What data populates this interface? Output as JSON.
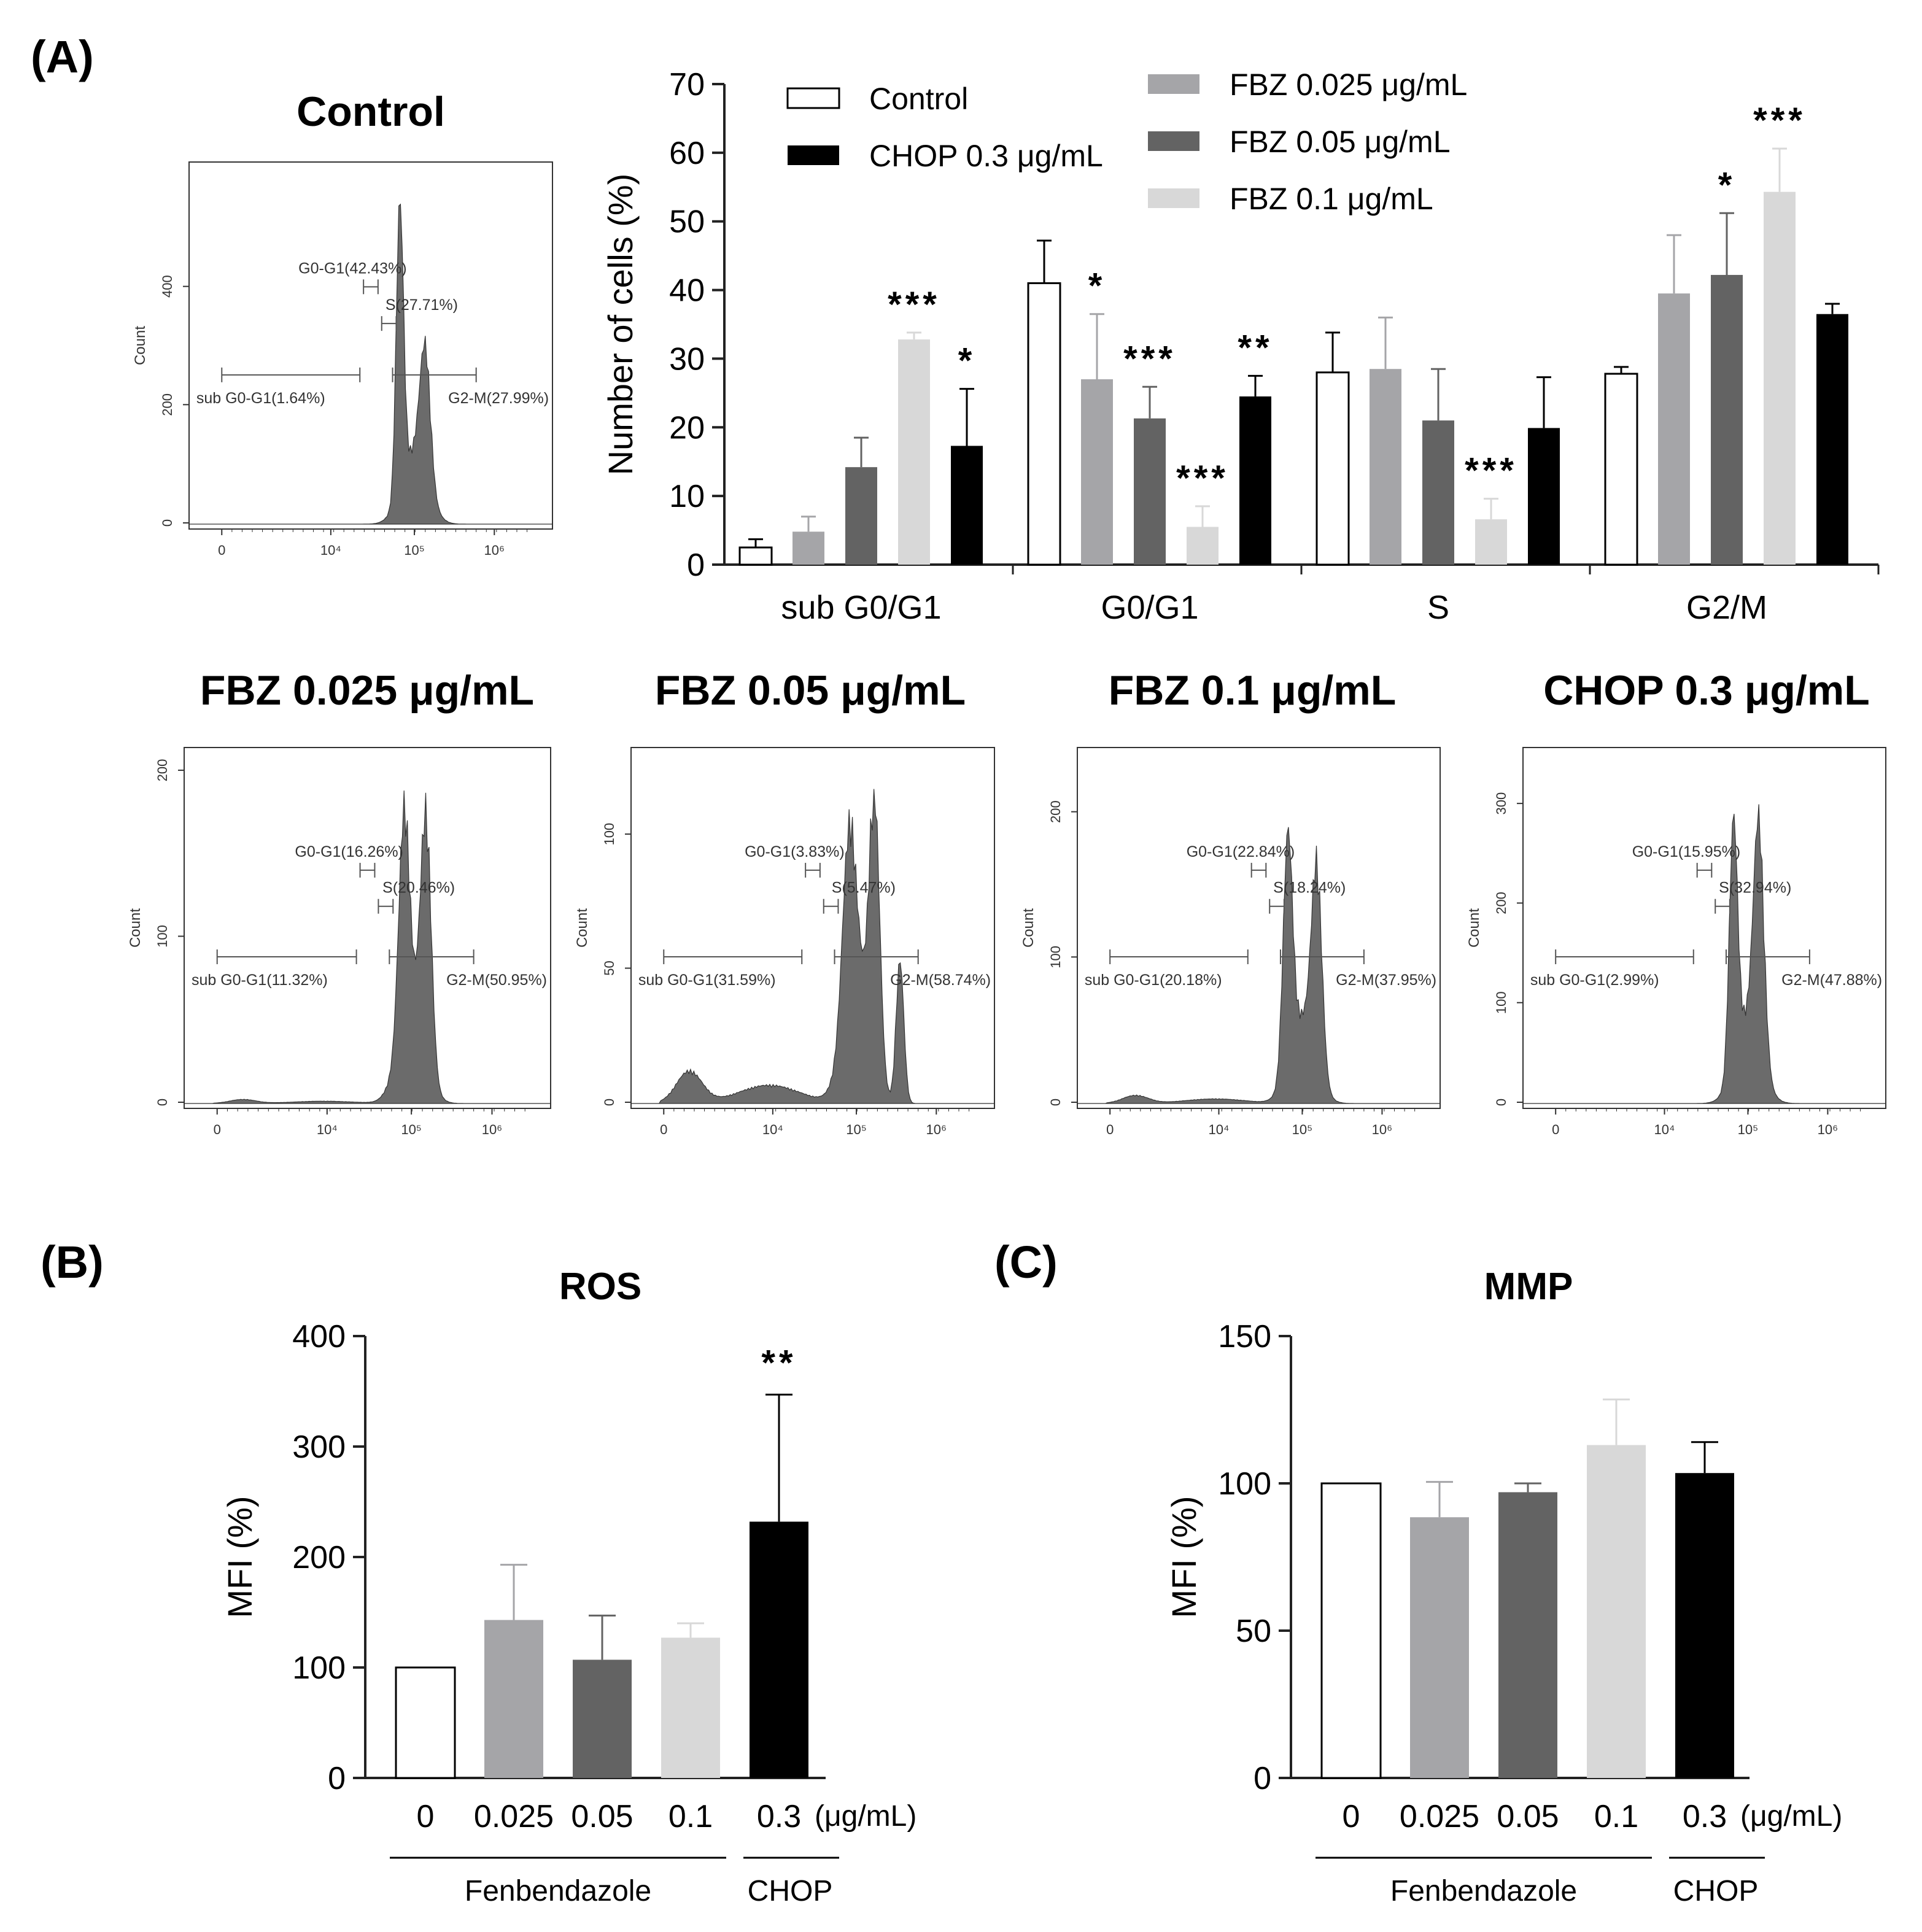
{
  "panel_labels": {
    "a": "(A)",
    "b": "(B)",
    "c": "(C)"
  },
  "colors": {
    "control": "#ffffff",
    "fbz025": "#a5a5a8",
    "fbz05": "#636363",
    "fbz1": "#d8d8d8",
    "chop": "#000000",
    "hist_fill": "#6b6b6b",
    "axis": "#222222",
    "gate": "#555555"
  },
  "chart_data": [
    {
      "id": "cell_cycle",
      "type": "bar",
      "title": "",
      "xlabel": "",
      "ylabel": "Number of cells (%)",
      "ylim": [
        0,
        70
      ],
      "yticks": [
        "0",
        "10",
        "20",
        "30",
        "40",
        "50",
        "60",
        "70"
      ],
      "categories": [
        "sub G0/G1",
        "G0/G1",
        "S",
        "G2/M"
      ],
      "series": [
        {
          "name": "Control",
          "color_key": "control",
          "values": [
            2.5,
            41,
            28,
            27.8
          ],
          "errors": [
            1.2,
            6.2,
            5.8,
            1.0
          ],
          "sig": [
            "",
            "",
            "",
            ""
          ]
        },
        {
          "name": "FBZ 0.025 μg/mL",
          "color_key": "fbz025",
          "values": [
            4.8,
            27,
            28.5,
            39.5
          ],
          "errors": [
            2.2,
            9.5,
            7.5,
            8.5
          ],
          "sig": [
            "",
            "*",
            "",
            ""
          ]
        },
        {
          "name": "FBZ 0.05 μg/mL",
          "color_key": "fbz05",
          "values": [
            14.2,
            21.3,
            21,
            42.2
          ],
          "errors": [
            4.3,
            4.6,
            7.5,
            9.0
          ],
          "sig": [
            "",
            "***",
            "",
            "*"
          ]
        },
        {
          "name": "FBZ 0.1 μg/mL",
          "color_key": "fbz1",
          "values": [
            32.8,
            5.5,
            6.6,
            54.3
          ],
          "errors": [
            1.0,
            3.0,
            3.0,
            6.3
          ],
          "sig": [
            "***",
            "***",
            "***",
            "***"
          ]
        },
        {
          "name": "CHOP 0.3 μg/mL",
          "color_key": "chop",
          "values": [
            17.3,
            24.5,
            19.9,
            36.5
          ],
          "errors": [
            8.3,
            3.0,
            7.4,
            1.5
          ],
          "sig": [
            "*",
            "**",
            "",
            ""
          ]
        }
      ],
      "legend": {
        "placement": "top",
        "entries": [
          "Control",
          "CHOP 0.3 μg/mL",
          "FBZ 0.025 μg/mL",
          "FBZ 0.05 μg/mL",
          "FBZ 0.1 μg/mL"
        ]
      }
    },
    {
      "id": "ros",
      "type": "bar",
      "title": "ROS",
      "ylabel": "MFI (%)",
      "ylim": [
        0,
        400
      ],
      "yticks": [
        "0",
        "100",
        "200",
        "300",
        "400"
      ],
      "categories": [
        "0",
        "0.025",
        "0.05",
        "0.1",
        "0.3"
      ],
      "unit_label": "(μg/mL)",
      "groups": [
        "Fenbendazole",
        "CHOP"
      ],
      "values": [
        100,
        143,
        107,
        127,
        232
      ],
      "errors": [
        0,
        50,
        40,
        13,
        115
      ],
      "color_keys": [
        "control",
        "fbz025",
        "fbz05",
        "fbz1",
        "chop"
      ],
      "sig": [
        "",
        "",
        "",
        "",
        "**"
      ]
    },
    {
      "id": "mmp",
      "type": "bar",
      "title": "MMP",
      "ylabel": "MFI (%)",
      "ylim": [
        0,
        150
      ],
      "yticks": [
        "0",
        "50",
        "100",
        "150"
      ],
      "categories": [
        "0",
        "0.025",
        "0.05",
        "0.1",
        "0.3"
      ],
      "unit_label": "(μg/mL)",
      "groups": [
        "Fenbendazole",
        "CHOP"
      ],
      "values": [
        100,
        88.5,
        97,
        113,
        103.5
      ],
      "errors": [
        0,
        12,
        3,
        15.5,
        10.5
      ],
      "color_keys": [
        "control",
        "fbz025",
        "fbz05",
        "fbz1",
        "chop"
      ],
      "sig": [
        "",
        "",
        "",
        "",
        ""
      ]
    }
  ],
  "histograms": [
    {
      "id": "control",
      "title": "Control",
      "yticks": [
        "0",
        "200",
        "400"
      ],
      "ymax": 600,
      "ylabel": "Count",
      "xticks": [
        "0",
        "10⁴",
        "10⁵",
        "10⁶"
      ],
      "gates": {
        "sub": "sub G0-G1(1.64%)",
        "g0g1": "G0-G1(42.43%)",
        "s": "S(27.71%)",
        "g2m": "G2-M(27.99%)"
      },
      "subpop": 0.0,
      "peaks": [
        [
          0.58,
          0.014,
          1.0
        ],
        [
          0.65,
          0.02,
          0.45
        ]
      ],
      "shoulder": 0.25
    },
    {
      "id": "fbz025",
      "title": "FBZ 0.025 μg/mL",
      "yticks": [
        "0",
        "100",
        "200"
      ],
      "ymax": 210,
      "ylabel": "Count",
      "xticks": [
        "0",
        "10⁴",
        "10⁵",
        "10⁶"
      ],
      "gates": {
        "sub": "sub G0-G1(11.32%)",
        "g0g1": "G0-G1(16.26%)",
        "s": "S(20.46%)",
        "g2m": "G2-M(50.95%)"
      },
      "subpop": 0.04,
      "peaks": [
        [
          0.6,
          0.02,
          0.75
        ],
        [
          0.66,
          0.02,
          0.85
        ]
      ],
      "shoulder": 0.35
    },
    {
      "id": "fbz05",
      "title": "FBZ 0.05 μg/mL",
      "yticks": [
        "0",
        "50",
        "100"
      ],
      "ymax": 130,
      "ylabel": "Count",
      "xticks": [
        "0",
        "10⁴",
        "10⁵",
        "10⁶"
      ],
      "gates": {
        "sub": "sub G0-G1(31.59%)",
        "g0g1": "G0-G1(3.83%)",
        "s": "S(5.47%)",
        "g2m": "G2-M(58.74%)"
      },
      "subpop": 0.32,
      "peaks": [
        [
          0.6,
          0.025,
          0.6
        ],
        [
          0.67,
          0.02,
          0.95
        ],
        [
          0.74,
          0.015,
          0.5
        ]
      ],
      "shoulder": 0.45
    },
    {
      "id": "fbz1",
      "title": "FBZ 0.1 μg/mL",
      "yticks": [
        "0",
        "100",
        "200"
      ],
      "ymax": 240,
      "ylabel": "Count",
      "xticks": [
        "0",
        "10⁴",
        "10⁵",
        "10⁶"
      ],
      "gates": {
        "sub": "sub G0-G1(20.18%)",
        "g0g1": "G0-G1(22.84%)",
        "s": "S(18.24%)",
        "g2m": "G2-M(37.95%)"
      },
      "subpop": 0.08,
      "peaks": [
        [
          0.58,
          0.018,
          0.8
        ],
        [
          0.66,
          0.02,
          0.7
        ]
      ],
      "shoulder": 0.3
    },
    {
      "id": "chop",
      "title": "CHOP 0.3 μg/mL",
      "yticks": [
        "0",
        "100",
        "200",
        "300"
      ],
      "ymax": 350,
      "ylabel": "Count",
      "xticks": [
        "0",
        "10⁴",
        "10⁵",
        "10⁶"
      ],
      "gates": {
        "sub": "sub G0-G1(2.99%)",
        "g0g1": "G0-G1(15.95%)",
        "s": "S(32.94%)",
        "g2m": "G2-M(47.88%)"
      },
      "subpop": 0.0,
      "peaks": [
        [
          0.58,
          0.016,
          0.85
        ],
        [
          0.65,
          0.02,
          0.8
        ]
      ],
      "shoulder": 0.3
    }
  ]
}
